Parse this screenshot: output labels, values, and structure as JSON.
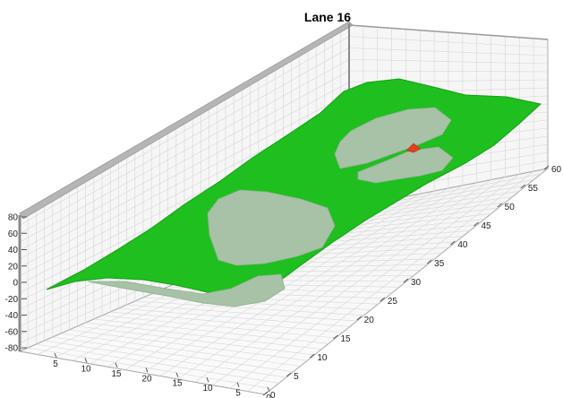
{
  "chart_data": {
    "type": "surface",
    "title": "Lane 16",
    "z_axis": {
      "ticks": [
        -80,
        -60,
        -40,
        -20,
        0,
        20,
        40,
        60,
        80
      ],
      "tick_labels": [
        "-80",
        "-60",
        "-40",
        "-20",
        "0",
        "20",
        "40",
        "60",
        "80"
      ],
      "range": [
        -80,
        80
      ]
    },
    "y_axis": {
      "ticks": [
        0,
        5,
        10,
        15,
        20,
        25,
        30,
        35,
        40,
        45,
        50,
        55,
        60
      ],
      "tick_labels": [
        "0",
        "5",
        "10",
        "15",
        "20",
        "25",
        "30",
        "35",
        "40",
        "45",
        "50",
        "55",
        "60"
      ],
      "range": [
        0,
        60
      ]
    },
    "x_axis": {
      "tick_labels": [
        "5",
        "10",
        "15",
        "20",
        "15",
        "10",
        "5",
        "0"
      ]
    },
    "grid": true,
    "colors": {
      "surface": "#1ebf1e",
      "surface_edge": "#14a014",
      "holes": "#a7c2a7",
      "peak": "#d9441f",
      "walls": "#bdbdbd",
      "grid": "#d6d6d6"
    }
  }
}
